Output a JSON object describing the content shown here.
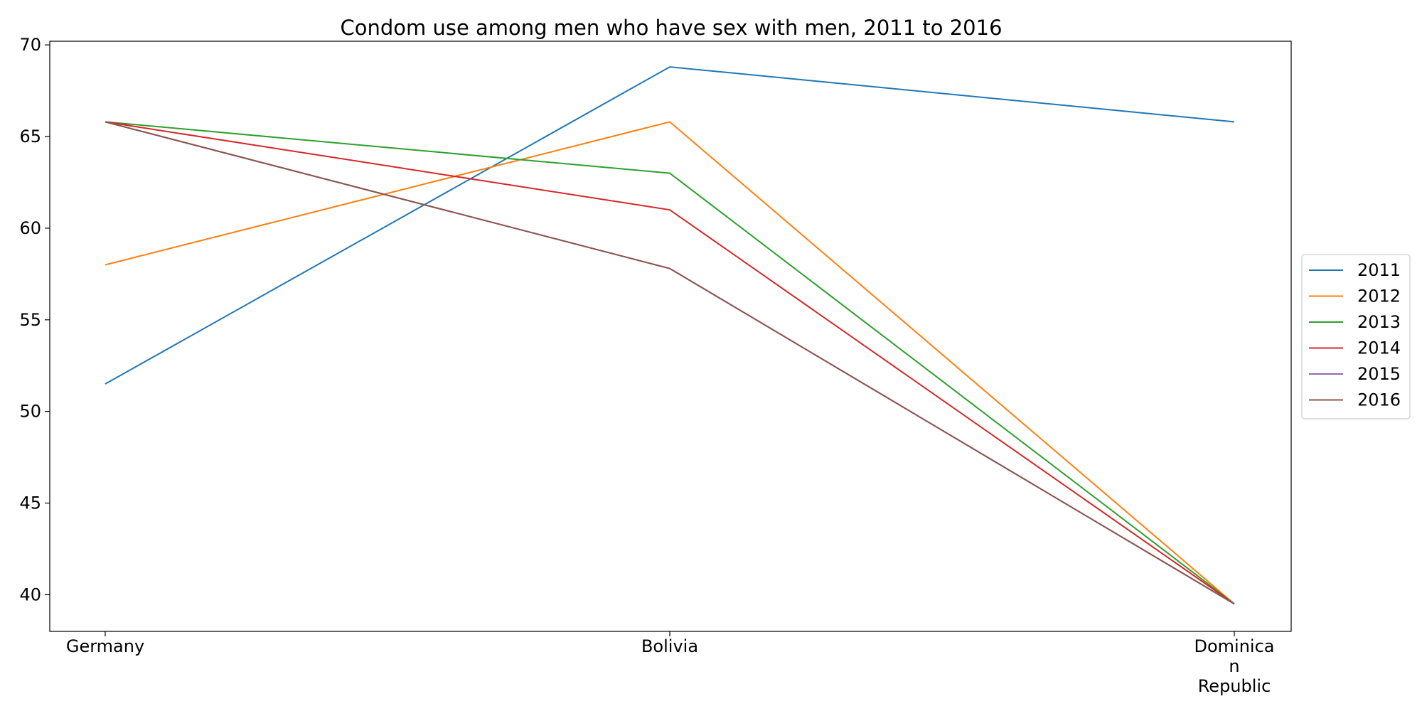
{
  "chart_data": {
    "type": "line",
    "title": "Condom use among men who have sex with men, 2011 to 2016",
    "xlabel": "",
    "ylabel": "",
    "categories": [
      [
        "Germany"
      ],
      [
        "Bolivia"
      ],
      [
        "Dominica",
        "n",
        "Republic"
      ]
    ],
    "ylim": [
      38,
      70.2
    ],
    "yticks": [
      40,
      45,
      50,
      55,
      60,
      65,
      70
    ],
    "grid": false,
    "legend_position": "right-center",
    "series": [
      {
        "name": "2011",
        "color": "#1f77b4",
        "values": [
          51.5,
          68.8,
          65.8
        ]
      },
      {
        "name": "2012",
        "color": "#ff7f0e",
        "values": [
          58.0,
          65.8,
          39.5
        ]
      },
      {
        "name": "2013",
        "color": "#2ca02c",
        "values": [
          65.8,
          63.0,
          39.5
        ]
      },
      {
        "name": "2014",
        "color": "#d62728",
        "values": [
          65.8,
          61.0,
          39.5
        ]
      },
      {
        "name": "2015",
        "color": "#9467bd",
        "values": [
          65.8,
          57.8,
          39.5
        ]
      },
      {
        "name": "2016",
        "color": "#8c564b",
        "values": [
          65.8,
          57.8,
          39.5
        ]
      }
    ]
  }
}
